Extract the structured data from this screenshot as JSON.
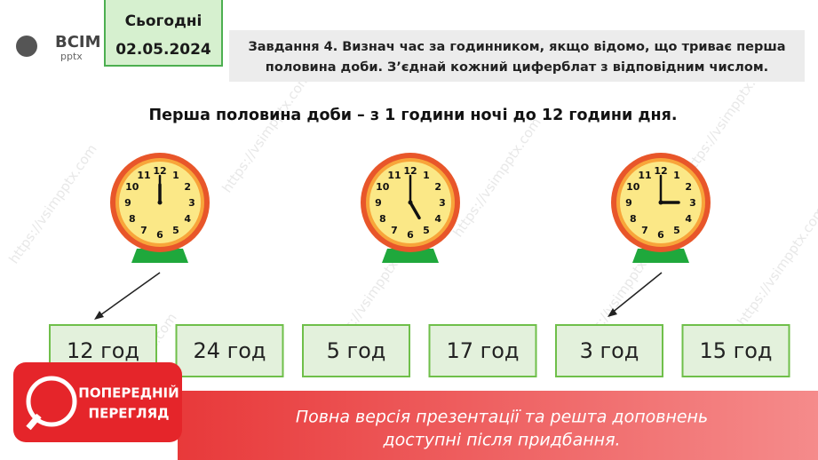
{
  "logo": {
    "name": "ВСІМ",
    "sub": "pptx"
  },
  "header": {
    "label": "Сьогодні",
    "date": "02.05.2024"
  },
  "task": {
    "lines": [
      "Завдання 4. Визнач час за годинником, якщо відомо, що триває перша",
      "половина доби. З’єднай кожний циферблат з відповідним числом."
    ]
  },
  "subtitle": "Перша половина доби – з 1 години ночі до 12 години дня.",
  "clock_numerals": [
    "12",
    "1",
    "2",
    "3",
    "4",
    "5",
    "6",
    "7",
    "8",
    "9",
    "10",
    "11"
  ],
  "options": [
    "12 год",
    "24 год",
    "5 год",
    "17 год",
    "3 год",
    "15 год"
  ],
  "watermark": "https://vsimpptx.com",
  "banner": {
    "badge": [
      "ПОПЕРЕДНІЙ",
      "ПЕРЕГЛЯД"
    ],
    "text": [
      "Повна версія презентації та решта доповнень",
      "доступні після придбання."
    ]
  }
}
